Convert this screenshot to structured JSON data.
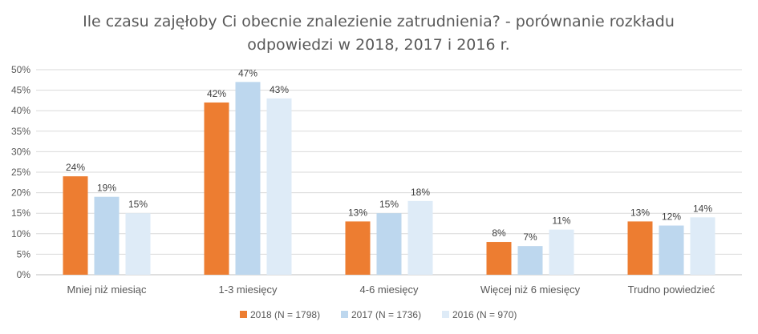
{
  "chart_data": {
    "type": "bar",
    "title_lines": [
      "Ile czasu zajęłoby Ci obecnie znalezienie zatrudnienia? - porównanie rozkładu",
      "odpowiedzi w 2018, 2017 i 2016 r."
    ],
    "categories": [
      "Mniej niż miesiąc",
      "1-3 miesięcy",
      "4-6 miesięcy",
      "Więcej niż 6 miesięcy",
      "Trudno powiedzieć"
    ],
    "series": [
      {
        "name": "2018 (N = 1798)",
        "color": "#ED7D31",
        "values": [
          24,
          42,
          13,
          8,
          13
        ]
      },
      {
        "name": "2017 (N = 1736)",
        "color": "#BDD7EE",
        "values": [
          19,
          47,
          15,
          7,
          12
        ]
      },
      {
        "name": "2016 (N = 970)",
        "color": "#DEEBF7",
        "values": [
          15,
          43,
          18,
          11,
          14
        ]
      }
    ],
    "y_ticks": [
      0,
      5,
      10,
      15,
      20,
      25,
      30,
      35,
      40,
      45,
      50
    ],
    "y_tick_suffix": "%",
    "data_label_suffix": "%",
    "ylim": [
      0,
      50
    ],
    "grid": true,
    "legend_position": "bottom"
  }
}
